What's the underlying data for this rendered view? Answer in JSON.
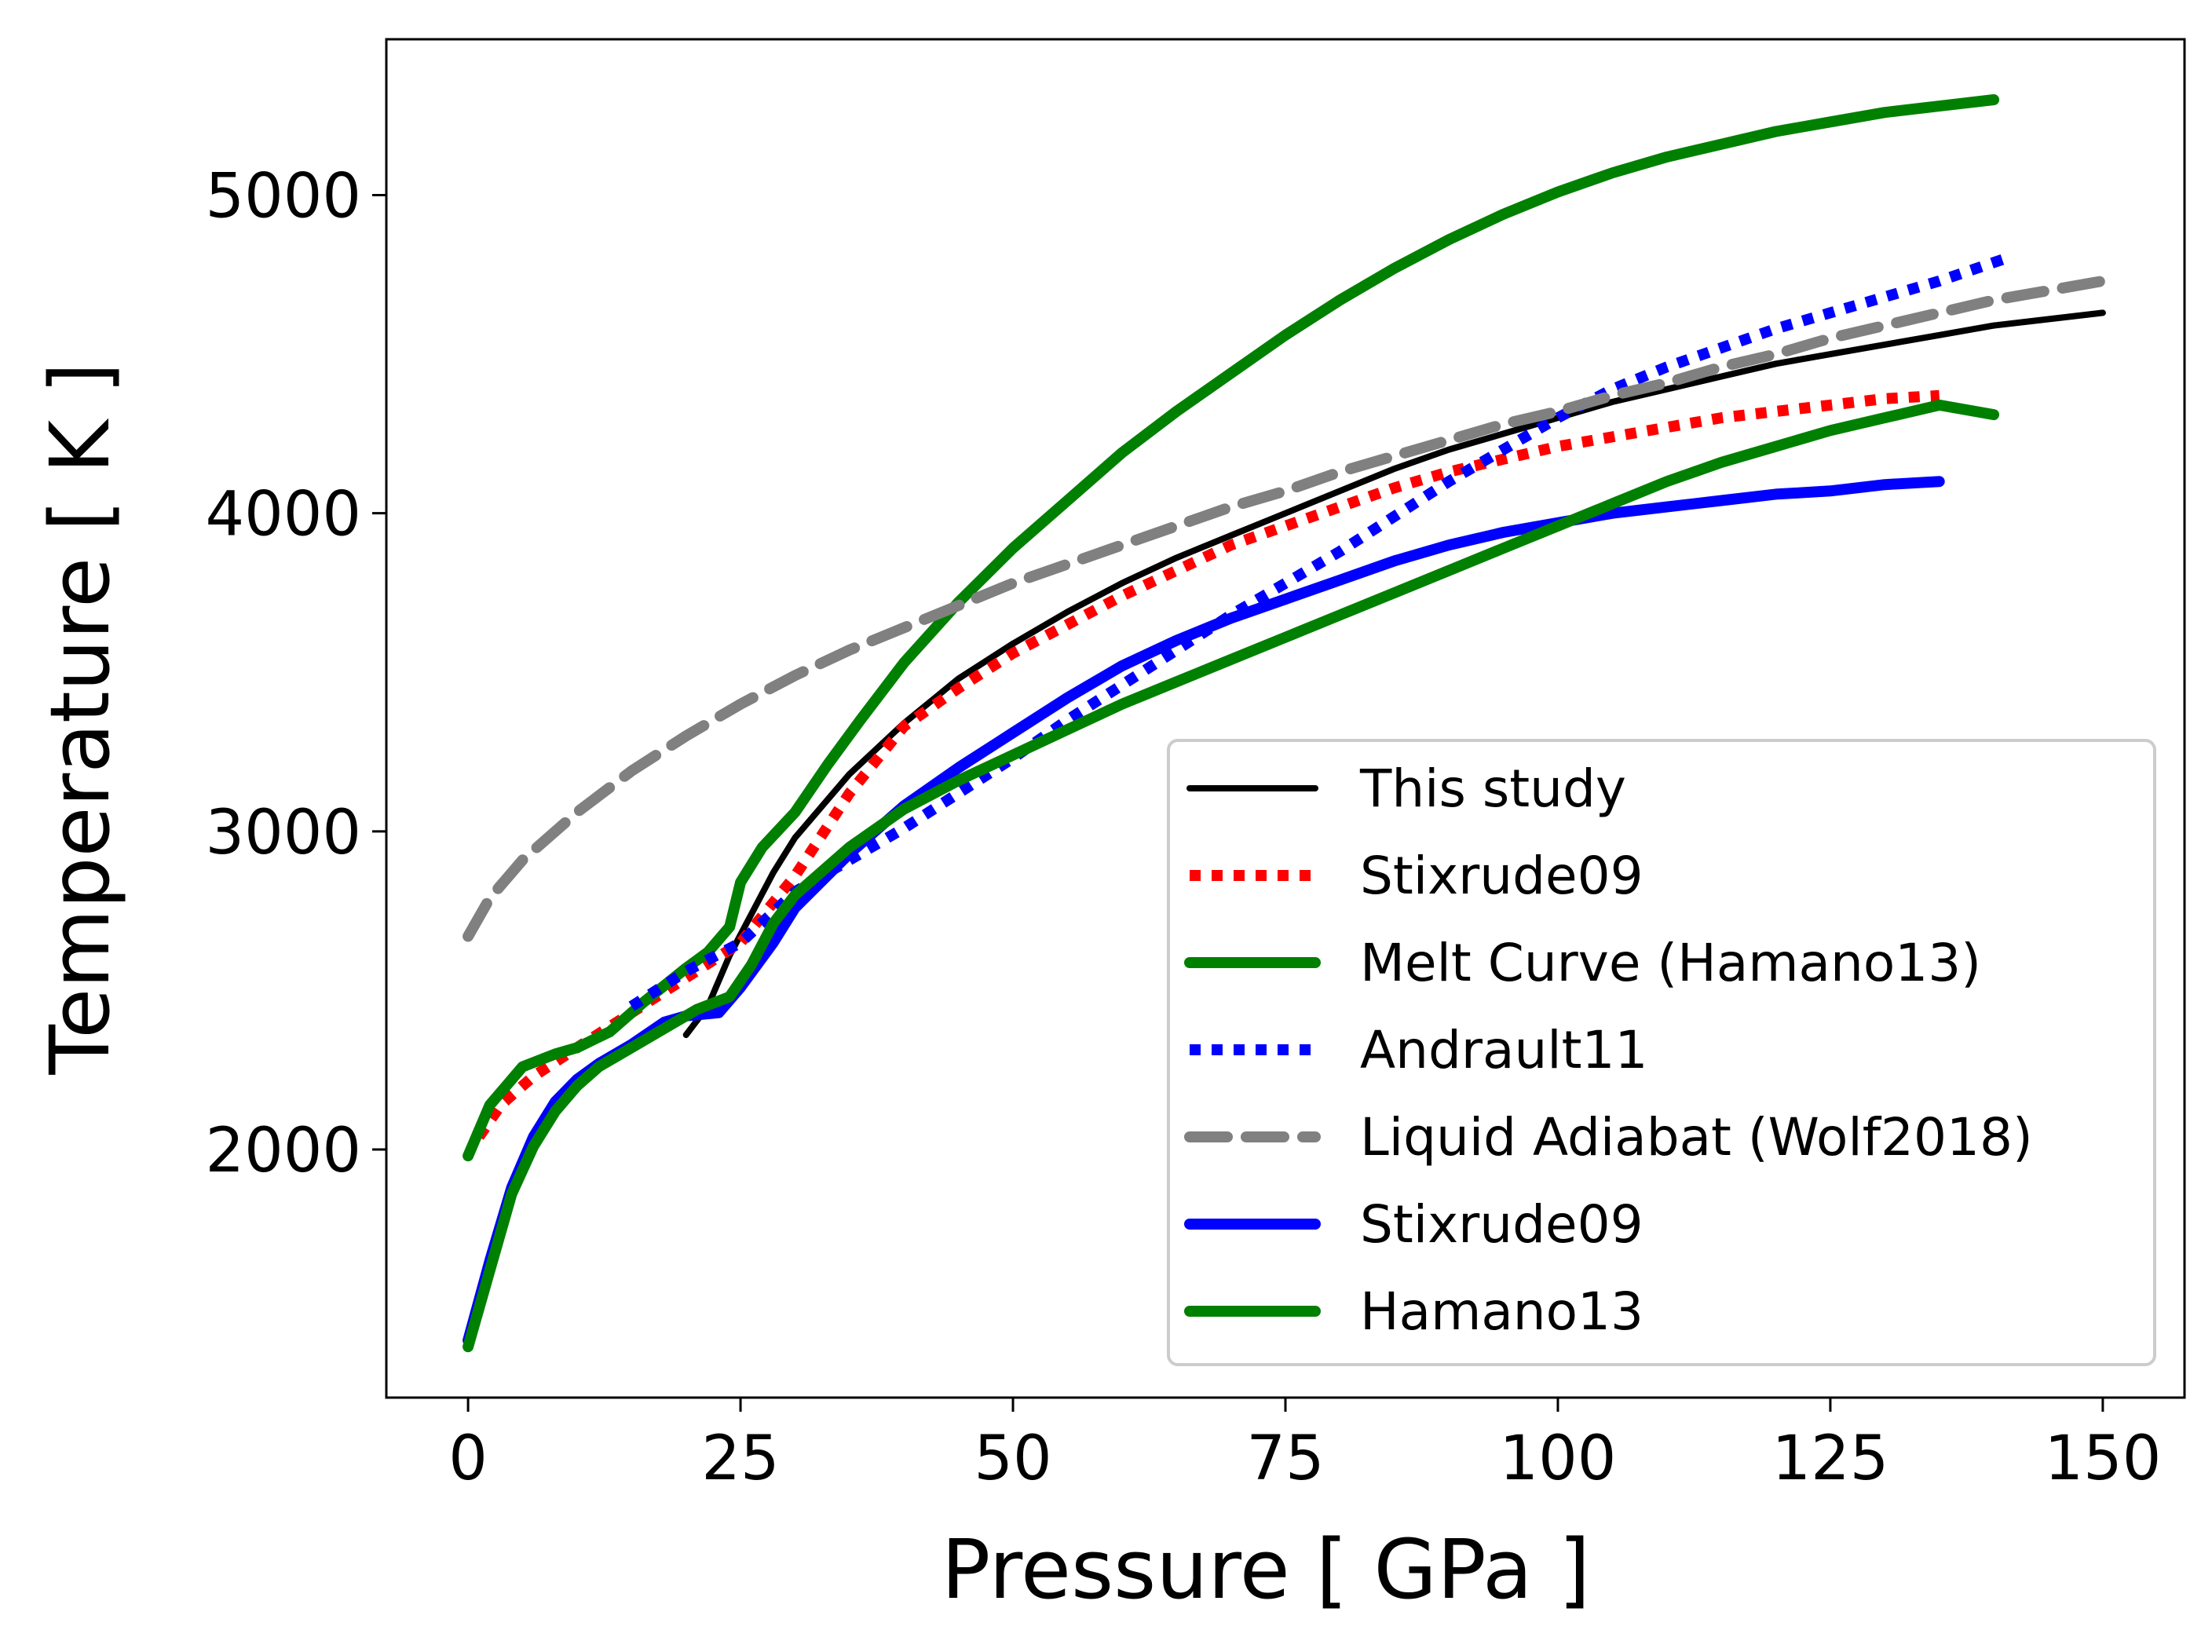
{
  "chart_data": {
    "type": "line",
    "title": "",
    "xlabel": "Pressure  [ GPa ]",
    "ylabel": "Temperature  [ K ]",
    "xlim": [
      -7.5,
      157.5
    ],
    "ylim": [
      1220,
      5490
    ],
    "xticks": [
      0,
      25,
      50,
      75,
      100,
      125,
      150
    ],
    "yticks": [
      2000,
      3000,
      4000,
      5000
    ],
    "grid": false,
    "legend_position": "lower-right",
    "series": [
      {
        "name": "This study",
        "color": "#000000",
        "style": "solid",
        "width": 8,
        "points": [
          [
            20,
            2360
          ],
          [
            22,
            2450
          ],
          [
            24,
            2610
          ],
          [
            26,
            2740
          ],
          [
            28,
            2870
          ],
          [
            30,
            2980
          ],
          [
            35,
            3180
          ],
          [
            40,
            3340
          ],
          [
            45,
            3480
          ],
          [
            50,
            3590
          ],
          [
            55,
            3690
          ],
          [
            60,
            3780
          ],
          [
            65,
            3860
          ],
          [
            70,
            3930
          ],
          [
            75,
            4000
          ],
          [
            80,
            4070
          ],
          [
            85,
            4140
          ],
          [
            90,
            4200
          ],
          [
            95,
            4250
          ],
          [
            100,
            4300
          ],
          [
            105,
            4350
          ],
          [
            110,
            4390
          ],
          [
            115,
            4430
          ],
          [
            120,
            4470
          ],
          [
            125,
            4500
          ],
          [
            130,
            4530
          ],
          [
            135,
            4560
          ],
          [
            140,
            4590
          ],
          [
            145,
            4610
          ],
          [
            150,
            4630
          ]
        ]
      },
      {
        "name": "Stixrude09",
        "color": "#ff0000",
        "style": "dotted",
        "width": 14,
        "points": [
          [
            1,
            2040
          ],
          [
            3,
            2140
          ],
          [
            6,
            2230
          ],
          [
            10,
            2320
          ],
          [
            15,
            2430
          ],
          [
            20,
            2540
          ],
          [
            25,
            2650
          ],
          [
            30,
            2860
          ],
          [
            35,
            3120
          ],
          [
            40,
            3330
          ],
          [
            45,
            3450
          ],
          [
            50,
            3560
          ],
          [
            55,
            3650
          ],
          [
            60,
            3740
          ],
          [
            65,
            3820
          ],
          [
            70,
            3900
          ],
          [
            75,
            3960
          ],
          [
            80,
            4020
          ],
          [
            85,
            4080
          ],
          [
            90,
            4130
          ],
          [
            95,
            4170
          ],
          [
            100,
            4210
          ],
          [
            105,
            4240
          ],
          [
            110,
            4270
          ],
          [
            115,
            4300
          ],
          [
            120,
            4320
          ],
          [
            125,
            4340
          ],
          [
            130,
            4360
          ],
          [
            135,
            4370
          ]
        ]
      },
      {
        "name": "Melt Curve (Hamano13)",
        "color": "#008000",
        "style": "solid",
        "width": 14,
        "points": [
          [
            0,
            1980
          ],
          [
            2,
            2140
          ],
          [
            5,
            2260
          ],
          [
            8,
            2300
          ],
          [
            10,
            2320
          ],
          [
            13,
            2370
          ],
          [
            16,
            2460
          ],
          [
            20,
            2570
          ],
          [
            22,
            2620
          ],
          [
            24,
            2700
          ],
          [
            25,
            2840
          ],
          [
            27,
            2950
          ],
          [
            30,
            3060
          ],
          [
            33,
            3210
          ],
          [
            36,
            3350
          ],
          [
            40,
            3530
          ],
          [
            45,
            3720
          ],
          [
            50,
            3890
          ],
          [
            55,
            4040
          ],
          [
            60,
            4190
          ],
          [
            65,
            4320
          ],
          [
            70,
            4440
          ],
          [
            75,
            4560
          ],
          [
            80,
            4670
          ],
          [
            85,
            4770
          ],
          [
            90,
            4860
          ],
          [
            95,
            4940
          ],
          [
            100,
            5010
          ],
          [
            105,
            5070
          ],
          [
            110,
            5120
          ],
          [
            115,
            5160
          ],
          [
            120,
            5200
          ],
          [
            125,
            5230
          ],
          [
            130,
            5260
          ],
          [
            135,
            5280
          ],
          [
            140,
            5300
          ]
        ]
      },
      {
        "name": "Andrault11",
        "color": "#0000ff",
        "style": "dotted",
        "width": 14,
        "points": [
          [
            15,
            2450
          ],
          [
            20,
            2560
          ],
          [
            25,
            2650
          ],
          [
            30,
            2810
          ],
          [
            35,
            2910
          ],
          [
            40,
            3010
          ],
          [
            45,
            3120
          ],
          [
            50,
            3230
          ],
          [
            55,
            3350
          ],
          [
            60,
            3460
          ],
          [
            65,
            3570
          ],
          [
            70,
            3680
          ],
          [
            75,
            3780
          ],
          [
            80,
            3880
          ],
          [
            85,
            3990
          ],
          [
            90,
            4100
          ],
          [
            95,
            4200
          ],
          [
            100,
            4300
          ],
          [
            105,
            4390
          ],
          [
            110,
            4460
          ],
          [
            115,
            4520
          ],
          [
            120,
            4580
          ],
          [
            125,
            4630
          ],
          [
            130,
            4680
          ],
          [
            135,
            4730
          ],
          [
            141,
            4800
          ]
        ]
      },
      {
        "name": "Liquid Adiabat (Wolf2018)",
        "color": "#808080",
        "style": "dashed",
        "width": 14,
        "points": [
          [
            0,
            2670
          ],
          [
            2,
            2790
          ],
          [
            5,
            2910
          ],
          [
            10,
            3060
          ],
          [
            15,
            3190
          ],
          [
            20,
            3300
          ],
          [
            25,
            3400
          ],
          [
            30,
            3490
          ],
          [
            35,
            3570
          ],
          [
            40,
            3640
          ],
          [
            45,
            3710
          ],
          [
            50,
            3780
          ],
          [
            55,
            3840
          ],
          [
            60,
            3900
          ],
          [
            65,
            3960
          ],
          [
            70,
            4020
          ],
          [
            75,
            4070
          ],
          [
            80,
            4130
          ],
          [
            85,
            4180
          ],
          [
            90,
            4230
          ],
          [
            95,
            4280
          ],
          [
            100,
            4320
          ],
          [
            105,
            4370
          ],
          [
            110,
            4410
          ],
          [
            115,
            4460
          ],
          [
            120,
            4500
          ],
          [
            125,
            4550
          ],
          [
            130,
            4590
          ],
          [
            135,
            4630
          ],
          [
            140,
            4670
          ],
          [
            145,
            4700
          ],
          [
            150,
            4730
          ]
        ]
      },
      {
        "name": "Stixrude09",
        "color": "#0000ff",
        "style": "solid",
        "width": 14,
        "points": [
          [
            0,
            1400
          ],
          [
            2,
            1650
          ],
          [
            4,
            1880
          ],
          [
            6,
            2040
          ],
          [
            8,
            2150
          ],
          [
            10,
            2220
          ],
          [
            12,
            2270
          ],
          [
            15,
            2330
          ],
          [
            18,
            2400
          ],
          [
            20,
            2420
          ],
          [
            23,
            2430
          ],
          [
            25,
            2510
          ],
          [
            28,
            2650
          ],
          [
            30,
            2760
          ],
          [
            35,
            2930
          ],
          [
            40,
            3080
          ],
          [
            45,
            3200
          ],
          [
            50,
            3310
          ],
          [
            55,
            3420
          ],
          [
            60,
            3520
          ],
          [
            65,
            3600
          ],
          [
            70,
            3670
          ],
          [
            75,
            3730
          ],
          [
            80,
            3790
          ],
          [
            85,
            3850
          ],
          [
            90,
            3900
          ],
          [
            95,
            3940
          ],
          [
            100,
            3970
          ],
          [
            105,
            4000
          ],
          [
            110,
            4020
          ],
          [
            115,
            4040
          ],
          [
            120,
            4060
          ],
          [
            125,
            4070
          ],
          [
            130,
            4090
          ],
          [
            135,
            4100
          ]
        ]
      },
      {
        "name": "Hamano13",
        "color": "#008000",
        "style": "solid",
        "width": 14,
        "points": [
          [
            0,
            1380
          ],
          [
            2,
            1620
          ],
          [
            4,
            1860
          ],
          [
            6,
            2010
          ],
          [
            8,
            2120
          ],
          [
            10,
            2200
          ],
          [
            12,
            2260
          ],
          [
            15,
            2320
          ],
          [
            18,
            2380
          ],
          [
            21,
            2440
          ],
          [
            24,
            2480
          ],
          [
            26,
            2580
          ],
          [
            28,
            2710
          ],
          [
            30,
            2800
          ],
          [
            35,
            2950
          ],
          [
            40,
            3070
          ],
          [
            45,
            3160
          ],
          [
            50,
            3240
          ],
          [
            55,
            3320
          ],
          [
            60,
            3400
          ],
          [
            65,
            3470
          ],
          [
            70,
            3540
          ],
          [
            75,
            3610
          ],
          [
            80,
            3680
          ],
          [
            85,
            3750
          ],
          [
            90,
            3820
          ],
          [
            95,
            3890
          ],
          [
            100,
            3960
          ],
          [
            105,
            4030
          ],
          [
            110,
            4100
          ],
          [
            115,
            4160
          ],
          [
            120,
            4210
          ],
          [
            125,
            4260
          ],
          [
            130,
            4300
          ],
          [
            135,
            4340
          ],
          [
            140,
            4310
          ]
        ]
      }
    ]
  }
}
